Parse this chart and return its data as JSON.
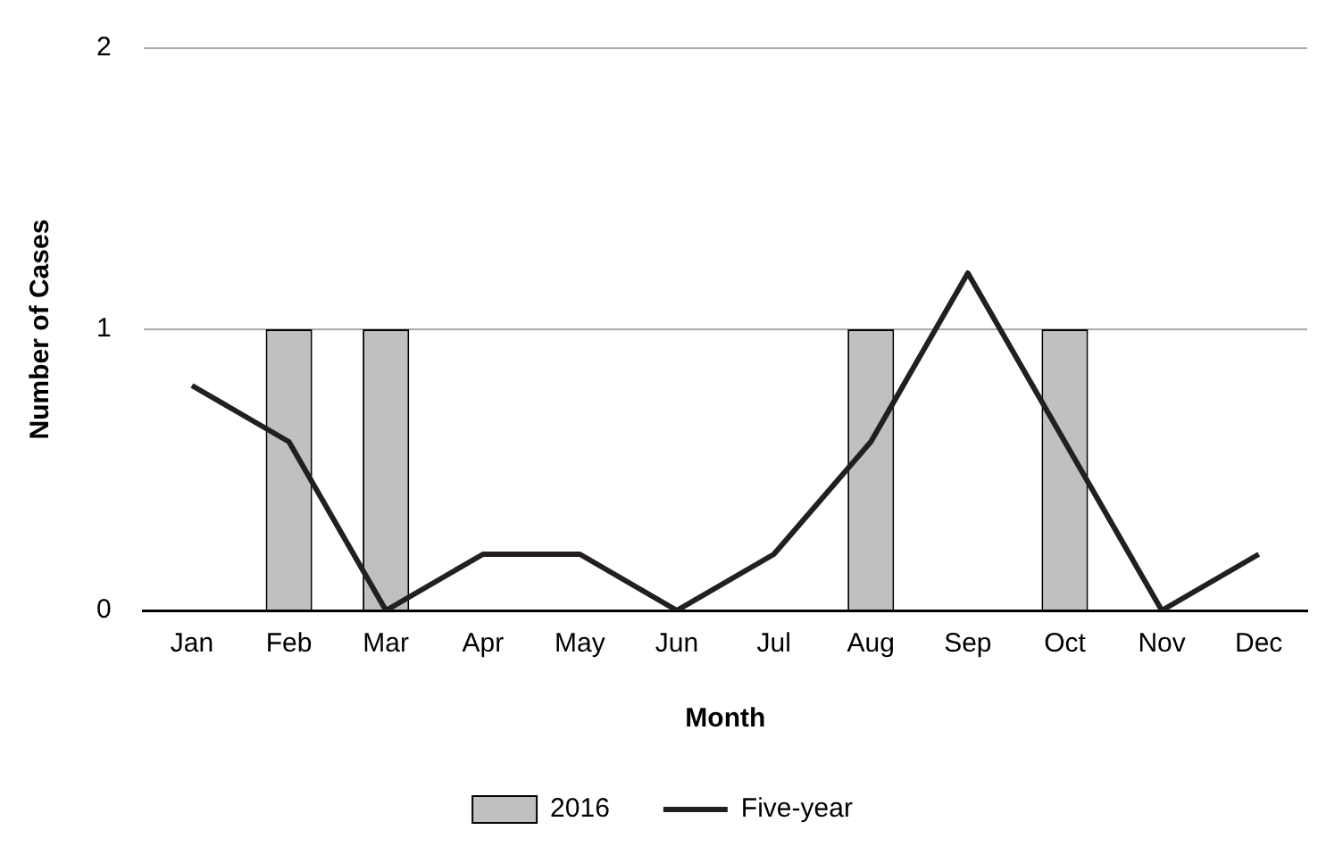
{
  "chart_data": {
    "type": "bar",
    "xlabel": "Month",
    "ylabel": "Number of Cases",
    "categories": [
      "Jan",
      "Feb",
      "Mar",
      "Apr",
      "May",
      "Jun",
      "Jul",
      "Aug",
      "Sep",
      "Oct",
      "Nov",
      "Dec"
    ],
    "series": [
      {
        "name": "2016",
        "color": "#c0c0c0",
        "values": [
          null,
          1,
          1,
          null,
          null,
          null,
          null,
          1,
          null,
          1,
          null,
          null
        ]
      },
      {
        "name": "Five-year",
        "type": "line",
        "color": "#231f20",
        "values": [
          0.8,
          0.6,
          0,
          0.2,
          0.2,
          0,
          0.2,
          0.6,
          1.2,
          0.6,
          0,
          0.2
        ]
      }
    ],
    "ylim": [
      0,
      2
    ],
    "yticks": [
      0,
      1,
      2
    ],
    "grid": "y",
    "legend": "bottom",
    "marker": "none",
    "line_style": "solid"
  }
}
